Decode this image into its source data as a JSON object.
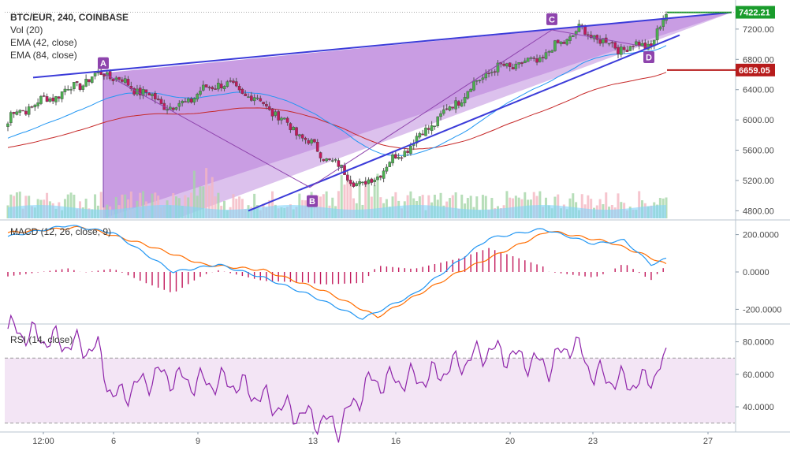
{
  "chart_data": {
    "type": "candlestick",
    "title": "BTC/EUR, 240, COINBASE",
    "indicators": [
      "Vol (20)",
      "EMA (42, close)",
      "EMA (84, close)"
    ],
    "x_ticks": [
      "12:00",
      "6",
      "9",
      "13",
      "16",
      "20",
      "23",
      "27"
    ],
    "price_axis": {
      "ticks": [
        "7200.00",
        "6800.00",
        "6400.00",
        "6000.00",
        "5600.00",
        "5200.00",
        "4800.00"
      ],
      "range": [
        4700,
        7480
      ]
    },
    "price_labels": [
      {
        "text": "7422.21",
        "value": 7422.21,
        "color": "#1a9c2c"
      },
      {
        "text": "6659.05",
        "value": 6659.05,
        "color": "#b71c1c"
      }
    ],
    "pattern": {
      "points": [
        {
          "label": "A",
          "value": 6620
        },
        {
          "label": "B",
          "value": 5110
        },
        {
          "label": "C",
          "value": 7190
        },
        {
          "label": "D",
          "value": 6960
        }
      ],
      "fill_color": "#9c4dcc",
      "line_color": "#3b3bd9"
    },
    "candle_colors": {
      "up": "#4caf50",
      "down": "#c2185b"
    },
    "ema_colors": {
      "ema42": "#2196f3",
      "ema84": "#c62828"
    },
    "macd": {
      "label": "MACD (12, 26, close, 9)",
      "ticks": [
        "200.0000",
        "0.0000",
        "-200.0000"
      ],
      "range": [
        -270,
        270
      ],
      "macd_color": "#2196f3",
      "signal_color": "#ff6d00",
      "hist_color": "#c2185b"
    },
    "rsi": {
      "label": "RSI (14, close)",
      "ticks": [
        "80.0000",
        "60.0000",
        "40.0000"
      ],
      "range": [
        25,
        90
      ],
      "band": [
        30,
        70
      ],
      "line_color": "#8e24aa",
      "band_color": "#f3e5f5"
    }
  }
}
